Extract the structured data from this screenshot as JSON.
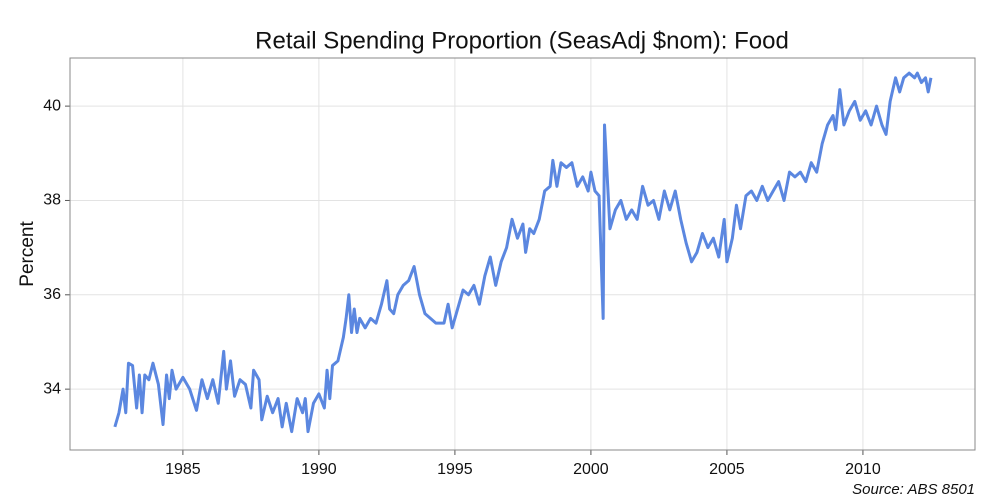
{
  "chart_data": {
    "type": "line",
    "title": "Retail Spending Proportion (SeasAdj $nom): Food",
    "ylabel": "Percent",
    "annotation": "Source: ABS 8501",
    "x": [
      1982.5,
      1982.65,
      1982.8,
      1982.9,
      1983.0,
      1983.15,
      1983.3,
      1983.4,
      1983.5,
      1983.6,
      1983.75,
      1983.9,
      1984.1,
      1984.27,
      1984.4,
      1984.5,
      1984.6,
      1984.75,
      1985.0,
      1985.25,
      1985.5,
      1985.7,
      1985.9,
      1986.1,
      1986.3,
      1986.5,
      1986.6,
      1986.75,
      1986.9,
      1987.1,
      1987.3,
      1987.5,
      1987.6,
      1987.8,
      1987.9,
      1988.1,
      1988.3,
      1988.5,
      1988.65,
      1988.8,
      1989.0,
      1989.2,
      1989.4,
      1989.5,
      1989.6,
      1989.8,
      1990.0,
      1990.2,
      1990.3,
      1990.4,
      1990.5,
      1990.7,
      1990.9,
      1991.0,
      1991.1,
      1991.2,
      1991.3,
      1991.4,
      1991.5,
      1991.7,
      1991.9,
      1992.1,
      1992.3,
      1992.5,
      1992.6,
      1992.75,
      1992.9,
      1993.1,
      1993.3,
      1993.5,
      1993.7,
      1993.9,
      1994.1,
      1994.3,
      1994.6,
      1994.75,
      1994.9,
      1995.1,
      1995.3,
      1995.5,
      1995.7,
      1995.9,
      1996.1,
      1996.3,
      1996.5,
      1996.7,
      1996.9,
      1997.1,
      1997.3,
      1997.5,
      1997.6,
      1997.75,
      1997.9,
      1998.1,
      1998.3,
      1998.5,
      1998.6,
      1998.75,
      1998.9,
      1999.1,
      1999.3,
      1999.5,
      1999.7,
      1999.9,
      2000.0,
      2000.15,
      2000.3,
      2000.45,
      2000.5,
      2000.7,
      2000.9,
      2001.1,
      2001.3,
      2001.5,
      2001.7,
      2001.9,
      2002.1,
      2002.3,
      2002.5,
      2002.7,
      2002.9,
      2003.1,
      2003.3,
      2003.5,
      2003.7,
      2003.9,
      2004.1,
      2004.3,
      2004.5,
      2004.7,
      2004.9,
      2005.0,
      2005.2,
      2005.35,
      2005.5,
      2005.7,
      2005.9,
      2006.1,
      2006.3,
      2006.5,
      2006.7,
      2006.9,
      2007.1,
      2007.3,
      2007.5,
      2007.7,
      2007.9,
      2008.1,
      2008.3,
      2008.5,
      2008.7,
      2008.9,
      2009.0,
      2009.15,
      2009.3,
      2009.5,
      2009.7,
      2009.9,
      2010.1,
      2010.3,
      2010.5,
      2010.7,
      2010.85,
      2011.0,
      2011.2,
      2011.35,
      2011.5,
      2011.7,
      2011.9,
      2012.0,
      2012.15,
      2012.3,
      2012.4,
      2012.5
    ],
    "series": [
      {
        "name": "Food",
        "color": "#5b87e0",
        "values": [
          33.2,
          33.5,
          34.0,
          33.5,
          34.55,
          34.5,
          33.6,
          34.3,
          33.5,
          34.3,
          34.2,
          34.55,
          34.1,
          33.25,
          34.3,
          33.8,
          34.4,
          34.0,
          34.25,
          34.0,
          33.55,
          34.2,
          33.8,
          34.2,
          33.7,
          34.8,
          34.0,
          34.6,
          33.85,
          34.2,
          34.1,
          33.6,
          34.4,
          34.2,
          33.35,
          33.85,
          33.5,
          33.8,
          33.2,
          33.7,
          33.1,
          33.8,
          33.5,
          33.8,
          33.1,
          33.7,
          33.9,
          33.6,
          34.4,
          33.8,
          34.5,
          34.6,
          35.1,
          35.5,
          36.0,
          35.2,
          35.7,
          35.2,
          35.5,
          35.3,
          35.5,
          35.4,
          35.8,
          36.3,
          35.7,
          35.6,
          36.0,
          36.2,
          36.3,
          36.6,
          36.0,
          35.6,
          35.5,
          35.4,
          35.4,
          35.8,
          35.3,
          35.7,
          36.1,
          36.0,
          36.2,
          35.8,
          36.4,
          36.8,
          36.2,
          36.7,
          37.0,
          37.6,
          37.2,
          37.5,
          36.9,
          37.4,
          37.3,
          37.6,
          38.2,
          38.3,
          38.85,
          38.3,
          38.8,
          38.7,
          38.8,
          38.3,
          38.5,
          38.2,
          38.6,
          38.2,
          38.1,
          35.5,
          39.6,
          37.4,
          37.8,
          38.0,
          37.6,
          37.8,
          37.6,
          38.3,
          37.9,
          38.0,
          37.6,
          38.2,
          37.8,
          38.2,
          37.6,
          37.1,
          36.7,
          36.9,
          37.3,
          37.0,
          37.2,
          36.8,
          37.6,
          36.7,
          37.2,
          37.9,
          37.4,
          38.1,
          38.2,
          38.0,
          38.3,
          38.0,
          38.2,
          38.4,
          38.0,
          38.6,
          38.5,
          38.6,
          38.4,
          38.8,
          38.6,
          39.2,
          39.6,
          39.8,
          39.5,
          40.35,
          39.6,
          39.9,
          40.1,
          39.7,
          39.9,
          39.6,
          40.0,
          39.6,
          39.4,
          40.1,
          40.6,
          40.3,
          40.6,
          40.7,
          40.6,
          40.7,
          40.5,
          40.6,
          40.3,
          40.6
        ]
      }
    ],
    "xlim": [
      1980.85,
      2014.12
    ],
    "xticks": [
      1985,
      1990,
      1995,
      2000,
      2005,
      2010
    ],
    "ylim": [
      32.71,
      41.02
    ],
    "yticks": [
      34,
      36,
      38,
      40
    ],
    "grid": true
  }
}
